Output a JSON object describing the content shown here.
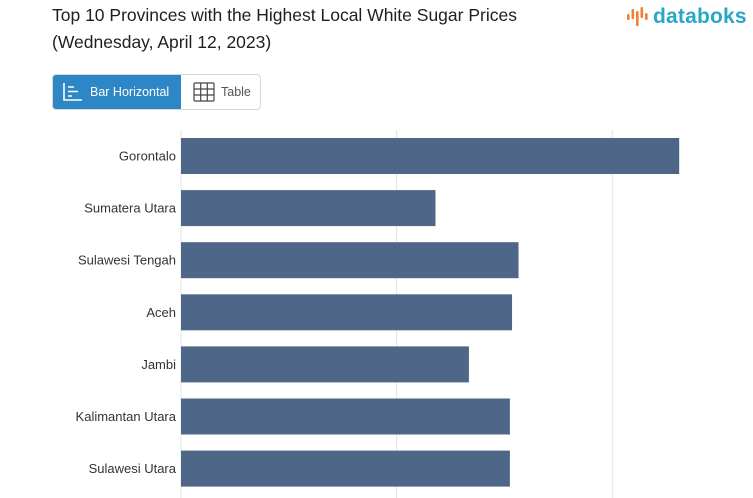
{
  "header": {
    "title": "Top 10 Provinces with the Highest Local White Sugar Prices (Wednesday, April 12, 2023)",
    "logo_text": "databoks"
  },
  "view_toggle": {
    "bar_label": "Bar Horizontal",
    "table_label": "Table",
    "active": "bar"
  },
  "colors": {
    "bar": "#4e6688",
    "accent": "#2d86c5",
    "logo_orange": "#ef7f33",
    "logo_teal": "#2aa6c6",
    "grid": "#e3e3e3"
  },
  "icons": [
    "databoks-logo-icon",
    "bar-chart-icon",
    "table-icon"
  ],
  "chart_data": {
    "type": "bar",
    "orientation": "horizontal",
    "categories": [
      "Gorontalo",
      "Sumatera Utara",
      "Sulawesi Tengah",
      "Aceh",
      "Jambi",
      "Kalimantan Utara",
      "Sulawesi Utara"
    ],
    "values": [
      23100,
      11800,
      15650,
      15350,
      13350,
      15250,
      15250
    ],
    "xlim": [
      0,
      30000
    ],
    "grid": true
  }
}
